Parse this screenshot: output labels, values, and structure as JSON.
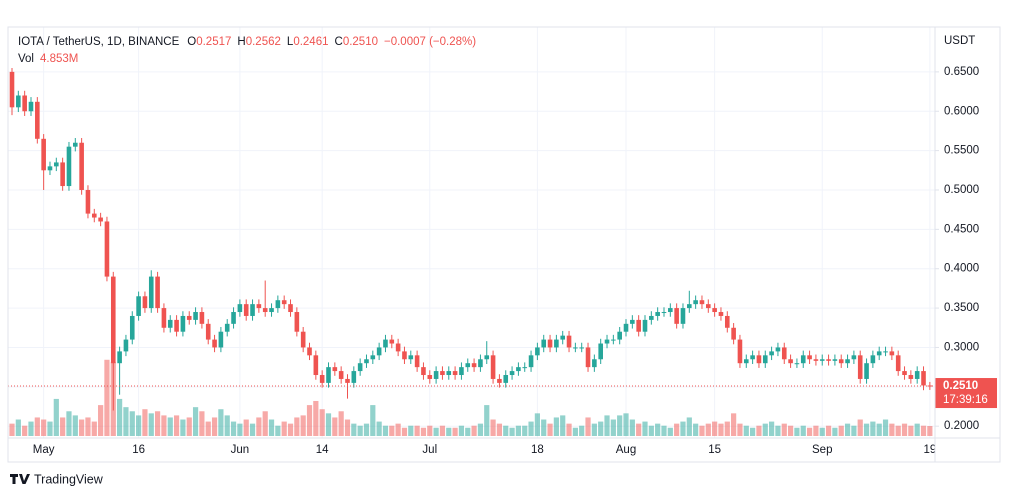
{
  "chart_data": {
    "type": "candlestick",
    "title": "IOTA / TetherUS, 1D, BINANCE",
    "legend": [
      {
        "key": "O",
        "value": "0.2517"
      },
      {
        "key": "H",
        "value": "0.2562"
      },
      {
        "key": "L",
        "value": "0.2461"
      },
      {
        "key": "C",
        "value": "0.2510"
      }
    ],
    "change": "−0.0007 (−0.28%)",
    "volume_name": "Vol",
    "volume_label": "4.853M",
    "y_unit": "USDT",
    "price_tag": {
      "price": "0.2510",
      "countdown": "17:39:16"
    },
    "categories": [
      null,
      null,
      null,
      null,
      null,
      "May",
      null,
      null,
      null,
      null,
      null,
      null,
      null,
      null,
      null,
      null,
      null,
      null,
      null,
      null,
      "16",
      null,
      null,
      null,
      null,
      null,
      null,
      null,
      null,
      null,
      null,
      null,
      null,
      null,
      null,
      null,
      "Jun",
      null,
      null,
      null,
      null,
      null,
      null,
      null,
      null,
      null,
      null,
      null,
      null,
      "14",
      null,
      null,
      null,
      null,
      null,
      null,
      null,
      null,
      null,
      null,
      null,
      null,
      null,
      null,
      null,
      null,
      "Jul",
      null,
      null,
      null,
      null,
      null,
      null,
      null,
      null,
      null,
      null,
      null,
      null,
      null,
      null,
      null,
      null,
      "18",
      null,
      null,
      null,
      null,
      null,
      null,
      null,
      null,
      null,
      null,
      null,
      null,
      null,
      "Aug",
      null,
      null,
      null,
      null,
      null,
      null,
      null,
      null,
      null,
      null,
      null,
      null,
      null,
      "15",
      null,
      null,
      null,
      null,
      null,
      null,
      null,
      null,
      null,
      null,
      null,
      null,
      null,
      null,
      null,
      null,
      "Sep",
      null,
      null,
      null,
      null,
      null,
      null,
      null,
      null,
      null,
      null,
      null,
      null,
      null,
      null,
      null,
      null,
      "19"
    ],
    "open": [
      0.65,
      0.605,
      0.62,
      0.6,
      0.612,
      0.565,
      0.525,
      0.53,
      0.535,
      0.505,
      0.555,
      0.56,
      0.5,
      0.47,
      0.465,
      0.46,
      0.39,
      0.28,
      0.295,
      0.31,
      0.34,
      0.365,
      0.35,
      0.39,
      0.35,
      0.325,
      0.335,
      0.32,
      0.34,
      0.335,
      0.345,
      0.33,
      0.31,
      0.3,
      0.32,
      0.33,
      0.345,
      0.355,
      0.34,
      0.355,
      0.35,
      0.345,
      0.35,
      0.36,
      0.355,
      0.345,
      0.32,
      0.3,
      0.29,
      0.265,
      0.255,
      0.275,
      0.27,
      0.26,
      0.255,
      0.27,
      0.28,
      0.285,
      0.29,
      0.3,
      0.31,
      0.305,
      0.295,
      0.285,
      0.29,
      0.275,
      0.265,
      0.26,
      0.27,
      0.265,
      0.27,
      0.265,
      0.275,
      0.28,
      0.275,
      0.285,
      0.29,
      0.26,
      0.255,
      0.265,
      0.27,
      0.275,
      0.275,
      0.29,
      0.3,
      0.31,
      0.3,
      0.31,
      0.315,
      0.3,
      0.3,
      0.3,
      0.275,
      0.285,
      0.305,
      0.31,
      0.31,
      0.32,
      0.33,
      0.335,
      0.32,
      0.335,
      0.34,
      0.345,
      0.345,
      0.35,
      0.33,
      0.35,
      0.355,
      0.36,
      0.355,
      0.35,
      0.345,
      0.34,
      0.325,
      0.31,
      0.28,
      0.285,
      0.29,
      0.28,
      0.29,
      0.295,
      0.3,
      0.285,
      0.28,
      0.28,
      0.29,
      0.285,
      0.283,
      0.285,
      0.283,
      0.285,
      0.28,
      0.285,
      0.29,
      0.26,
      0.28,
      0.29,
      0.295,
      0.295,
      0.29,
      0.27,
      0.265,
      0.26,
      0.27,
      0.2517
    ],
    "high": [
      0.655,
      0.626,
      0.626,
      0.618,
      0.618,
      0.571,
      0.536,
      0.541,
      0.541,
      0.561,
      0.566,
      0.566,
      0.506,
      0.476,
      0.471,
      0.466,
      0.396,
      0.301,
      0.316,
      0.346,
      0.371,
      0.371,
      0.398,
      0.396,
      0.356,
      0.341,
      0.341,
      0.346,
      0.346,
      0.351,
      0.351,
      0.336,
      0.316,
      0.326,
      0.336,
      0.351,
      0.361,
      0.361,
      0.361,
      0.361,
      0.385,
      0.356,
      0.366,
      0.366,
      0.361,
      0.351,
      0.326,
      0.306,
      0.296,
      0.271,
      0.281,
      0.281,
      0.276,
      0.266,
      0.276,
      0.286,
      0.291,
      0.296,
      0.306,
      0.316,
      0.316,
      0.311,
      0.301,
      0.296,
      0.296,
      0.281,
      0.271,
      0.276,
      0.276,
      0.276,
      0.276,
      0.281,
      0.286,
      0.286,
      0.291,
      0.308,
      0.296,
      0.266,
      0.271,
      0.276,
      0.281,
      0.281,
      0.296,
      0.306,
      0.316,
      0.316,
      0.316,
      0.321,
      0.321,
      0.306,
      0.306,
      0.306,
      0.291,
      0.311,
      0.316,
      0.316,
      0.326,
      0.336,
      0.341,
      0.341,
      0.341,
      0.346,
      0.351,
      0.351,
      0.356,
      0.356,
      0.356,
      0.372,
      0.366,
      0.366,
      0.361,
      0.356,
      0.351,
      0.346,
      0.331,
      0.316,
      0.291,
      0.296,
      0.296,
      0.296,
      0.301,
      0.306,
      0.306,
      0.291,
      0.286,
      0.296,
      0.296,
      0.291,
      0.291,
      0.291,
      0.291,
      0.291,
      0.291,
      0.296,
      0.296,
      0.286,
      0.296,
      0.301,
      0.301,
      0.301,
      0.296,
      0.276,
      0.271,
      0.276,
      0.276,
      0.2562
    ],
    "low": [
      0.595,
      0.599,
      0.594,
      0.594,
      0.559,
      0.5,
      0.519,
      0.524,
      0.499,
      0.499,
      0.549,
      0.494,
      0.464,
      0.459,
      0.454,
      0.384,
      0.22,
      0.24,
      0.289,
      0.304,
      0.334,
      0.344,
      0.344,
      0.344,
      0.319,
      0.319,
      0.314,
      0.314,
      0.329,
      0.329,
      0.324,
      0.304,
      0.294,
      0.294,
      0.314,
      0.324,
      0.339,
      0.334,
      0.334,
      0.344,
      0.339,
      0.339,
      0.344,
      0.349,
      0.339,
      0.314,
      0.294,
      0.284,
      0.259,
      0.249,
      0.249,
      0.264,
      0.254,
      0.235,
      0.249,
      0.264,
      0.274,
      0.279,
      0.284,
      0.294,
      0.299,
      0.289,
      0.279,
      0.279,
      0.269,
      0.259,
      0.254,
      0.254,
      0.259,
      0.259,
      0.259,
      0.259,
      0.269,
      0.269,
      0.269,
      0.279,
      0.254,
      0.249,
      0.249,
      0.259,
      0.264,
      0.269,
      0.269,
      0.284,
      0.294,
      0.294,
      0.294,
      0.304,
      0.294,
      0.294,
      0.294,
      0.269,
      0.269,
      0.279,
      0.299,
      0.304,
      0.304,
      0.314,
      0.324,
      0.314,
      0.314,
      0.329,
      0.334,
      0.339,
      0.339,
      0.324,
      0.324,
      0.344,
      0.349,
      0.349,
      0.344,
      0.339,
      0.334,
      0.319,
      0.304,
      0.274,
      0.274,
      0.279,
      0.274,
      0.274,
      0.284,
      0.289,
      0.279,
      0.274,
      0.274,
      0.274,
      0.279,
      0.277,
      0.277,
      0.277,
      0.277,
      0.274,
      0.274,
      0.279,
      0.254,
      0.254,
      0.274,
      0.284,
      0.289,
      0.284,
      0.264,
      0.259,
      0.254,
      0.254,
      0.2457,
      0.2461
    ],
    "close": [
      0.605,
      0.62,
      0.6,
      0.612,
      0.565,
      0.525,
      0.53,
      0.535,
      0.505,
      0.555,
      0.56,
      0.5,
      0.47,
      0.465,
      0.46,
      0.39,
      0.28,
      0.295,
      0.31,
      0.34,
      0.365,
      0.35,
      0.39,
      0.35,
      0.325,
      0.335,
      0.32,
      0.34,
      0.335,
      0.345,
      0.33,
      0.31,
      0.3,
      0.32,
      0.33,
      0.345,
      0.355,
      0.34,
      0.355,
      0.35,
      0.345,
      0.35,
      0.36,
      0.355,
      0.345,
      0.32,
      0.3,
      0.29,
      0.265,
      0.255,
      0.275,
      0.27,
      0.26,
      0.255,
      0.27,
      0.28,
      0.285,
      0.29,
      0.3,
      0.31,
      0.305,
      0.295,
      0.285,
      0.29,
      0.275,
      0.265,
      0.26,
      0.27,
      0.265,
      0.27,
      0.265,
      0.275,
      0.28,
      0.275,
      0.285,
      0.29,
      0.26,
      0.255,
      0.265,
      0.27,
      0.275,
      0.275,
      0.29,
      0.3,
      0.31,
      0.3,
      0.31,
      0.315,
      0.3,
      0.3,
      0.3,
      0.275,
      0.285,
      0.305,
      0.31,
      0.31,
      0.32,
      0.33,
      0.335,
      0.32,
      0.335,
      0.34,
      0.345,
      0.345,
      0.35,
      0.33,
      0.35,
      0.355,
      0.36,
      0.355,
      0.35,
      0.345,
      0.34,
      0.325,
      0.31,
      0.28,
      0.285,
      0.29,
      0.28,
      0.29,
      0.295,
      0.3,
      0.285,
      0.28,
      0.28,
      0.29,
      0.285,
      0.283,
      0.285,
      0.283,
      0.285,
      0.28,
      0.285,
      0.29,
      0.26,
      0.28,
      0.29,
      0.295,
      0.295,
      0.29,
      0.27,
      0.265,
      0.26,
      0.27,
      0.2517,
      0.251
    ],
    "volume": [
      6,
      8,
      5,
      7,
      9,
      8,
      7,
      18,
      9,
      12,
      10,
      8,
      9,
      7,
      15,
      37,
      36,
      18,
      14,
      12,
      10,
      13,
      11,
      12,
      10,
      9,
      10,
      8,
      9,
      14,
      12,
      7,
      9,
      13,
      10,
      7,
      6,
      8,
      6,
      9,
      12,
      8,
      5,
      7,
      6,
      9,
      10,
      15,
      17,
      13,
      11,
      9,
      12,
      8,
      6,
      5,
      6,
      15,
      7,
      5,
      5,
      6,
      4,
      5,
      5,
      4,
      5,
      4,
      5,
      4,
      4,
      5,
      4,
      5,
      6,
      15,
      8,
      6,
      5,
      4,
      5,
      5,
      7,
      11,
      8,
      6,
      9,
      10,
      6,
      4,
      5,
      9,
      6,
      7,
      10,
      8,
      10,
      11,
      8,
      6,
      7,
      5,
      6,
      5,
      4,
      6,
      7,
      9,
      6,
      5,
      6,
      7,
      6,
      7,
      11,
      6,
      5,
      4,
      5,
      6,
      7,
      5,
      6,
      5,
      4,
      5,
      4,
      5,
      4,
      5,
      4,
      5,
      6,
      5,
      8,
      6,
      7,
      6,
      8,
      6,
      5,
      6,
      5,
      6,
      5,
      4.853
    ],
    "up_color": "#26a69a",
    "down_color": "#ef5350",
    "ylim": [
      0.185,
      0.707
    ],
    "yticks": [
      {
        "value": 0.2,
        "label": "0.2000"
      },
      {
        "value": 0.25,
        "label": "0.2500"
      },
      {
        "value": 0.3,
        "label": "0.3000"
      },
      {
        "value": 0.35,
        "label": "0.3500"
      },
      {
        "value": 0.4,
        "label": "0.4000"
      },
      {
        "value": 0.45,
        "label": "0.4500"
      },
      {
        "value": 0.5,
        "label": "0.5000"
      },
      {
        "value": 0.55,
        "label": "0.5500"
      },
      {
        "value": 0.6,
        "label": "0.6000"
      },
      {
        "value": 0.65,
        "label": "0.6500"
      }
    ],
    "grid": true
  },
  "footer": {
    "brand": "TradingView"
  }
}
